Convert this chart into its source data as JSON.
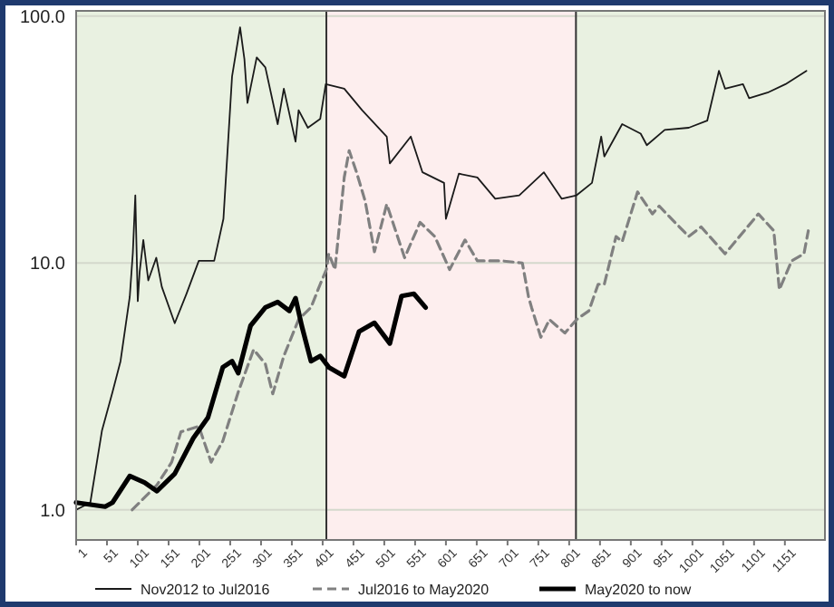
{
  "chart_data": {
    "type": "line",
    "log": "y",
    "grid": "y",
    "legend": "bottom",
    "xlim": [
      1,
      1216
    ],
    "xticks": [
      1,
      51,
      101,
      151,
      201,
      251,
      301,
      351,
      401,
      451,
      501,
      551,
      601,
      651,
      701,
      751,
      801,
      851,
      901,
      951,
      1001,
      1051,
      1101,
      1151
    ],
    "ylim": [
      0.755,
      105
    ],
    "yticks": [
      {
        "value": 1,
        "label": "1.0"
      },
      {
        "value": 10,
        "label": "10.0"
      },
      {
        "value": 100,
        "label": "100.0"
      }
    ],
    "bands": [
      {
        "axis": "x",
        "from": 1,
        "to": 407,
        "color": "#e9f1e1"
      },
      {
        "axis": "x",
        "from": 407,
        "to": 812,
        "color": "#fdeeee"
      },
      {
        "axis": "x",
        "from": 812,
        "to": 1216,
        "color": "#e9f1e1"
      }
    ],
    "ref_lines": [
      {
        "axis": "x",
        "value": 407,
        "color": "#333333"
      },
      {
        "axis": "x",
        "value": 812,
        "color": "#333333"
      }
    ],
    "series": [
      {
        "name": "Nov2012 to Jul2016",
        "color": "#1a1a1a",
        "line_style": "solid",
        "x": [
          1,
          24,
          43,
          60,
          73,
          88,
          93,
          97,
          101,
          104,
          110,
          118,
          131,
          140,
          161,
          180,
          200,
          225,
          240,
          254,
          267,
          274,
          279,
          294,
          308,
          328,
          338,
          357,
          362,
          377,
          397,
          406,
          436,
          465,
          505,
          510,
          544,
          563,
          598,
          601,
          622,
          652,
          681,
          720,
          760,
          789,
          813,
          838,
          853,
          858,
          887,
          917,
          927,
          956,
          995,
          1025,
          1044,
          1054,
          1083,
          1093,
          1123,
          1152,
          1186
        ],
        "values": [
          1.0,
          1.07,
          2.1,
          3.0,
          4.0,
          7.3,
          11,
          18.8,
          7,
          9.2,
          12.4,
          8.5,
          10.5,
          8,
          5.7,
          7.5,
          10.2,
          10.2,
          15.1,
          57,
          90,
          67,
          44.5,
          68,
          62,
          36.5,
          50.8,
          31,
          41.6,
          35.3,
          38.3,
          53,
          50.8,
          41.6,
          32.5,
          25.3,
          32.5,
          23.3,
          21.1,
          15.1,
          23,
          22.2,
          18.2,
          18.8,
          23.3,
          18.2,
          18.8,
          21.1,
          32.5,
          27,
          36.5,
          33.4,
          30,
          34.6,
          35.3,
          37.7,
          60,
          50.8,
          53,
          46.5,
          49,
          53,
          60
        ]
      },
      {
        "name": "Jul2016 to May2020",
        "color": "#808080",
        "line_style": "dashed",
        "x": [
          92,
          132,
          156,
          171,
          200,
          220,
          239,
          264,
          289,
          308,
          320,
          338,
          362,
          382,
          397,
          407,
          411,
          421,
          436,
          444,
          456,
          470,
          485,
          505,
          534,
          559,
          583,
          607,
          632,
          652,
          691,
          725,
          735,
          740,
          755,
          769,
          794,
          813,
          833,
          848,
          858,
          877,
          887,
          912,
          936,
          947,
          995,
          1015,
          1054,
          1108,
          1133,
          1142,
          1162,
          1182,
          1189
        ],
        "values": [
          1.0,
          1.26,
          1.56,
          2.07,
          2.18,
          1.56,
          1.9,
          3.0,
          4.46,
          3.9,
          2.95,
          4.2,
          5.9,
          6.6,
          8.2,
          9.4,
          10.9,
          9.4,
          22.2,
          28.5,
          23.3,
          17.8,
          11.1,
          17.3,
          10.5,
          14.6,
          12.8,
          9.4,
          12.4,
          10.2,
          10.2,
          10,
          7.3,
          6.6,
          5.0,
          5.9,
          5.2,
          5.9,
          6.4,
          8.2,
          8.2,
          12.8,
          12.2,
          19.4,
          15.8,
          17,
          12.8,
          14,
          10.9,
          15.8,
          13.5,
          7.8,
          10.2,
          10.9,
          13.5
        ]
      },
      {
        "name": "May2020 to now",
        "color": "#000000",
        "line_style": "solid",
        "x": [
          1,
          48,
          60,
          88,
          112,
          132,
          161,
          191,
          215,
          239,
          254,
          264,
          284,
          308,
          328,
          347,
          357,
          367,
          382,
          397,
          411,
          436,
          460,
          485,
          510,
          529,
          549,
          568
        ],
        "values": [
          1.07,
          1.03,
          1.07,
          1.37,
          1.29,
          1.19,
          1.4,
          1.95,
          2.37,
          3.78,
          4.0,
          3.58,
          5.57,
          6.6,
          6.95,
          6.4,
          7.2,
          5.57,
          4.0,
          4.2,
          3.78,
          3.48,
          5.27,
          5.72,
          4.72,
          7.35,
          7.5,
          6.6
        ]
      }
    ]
  }
}
